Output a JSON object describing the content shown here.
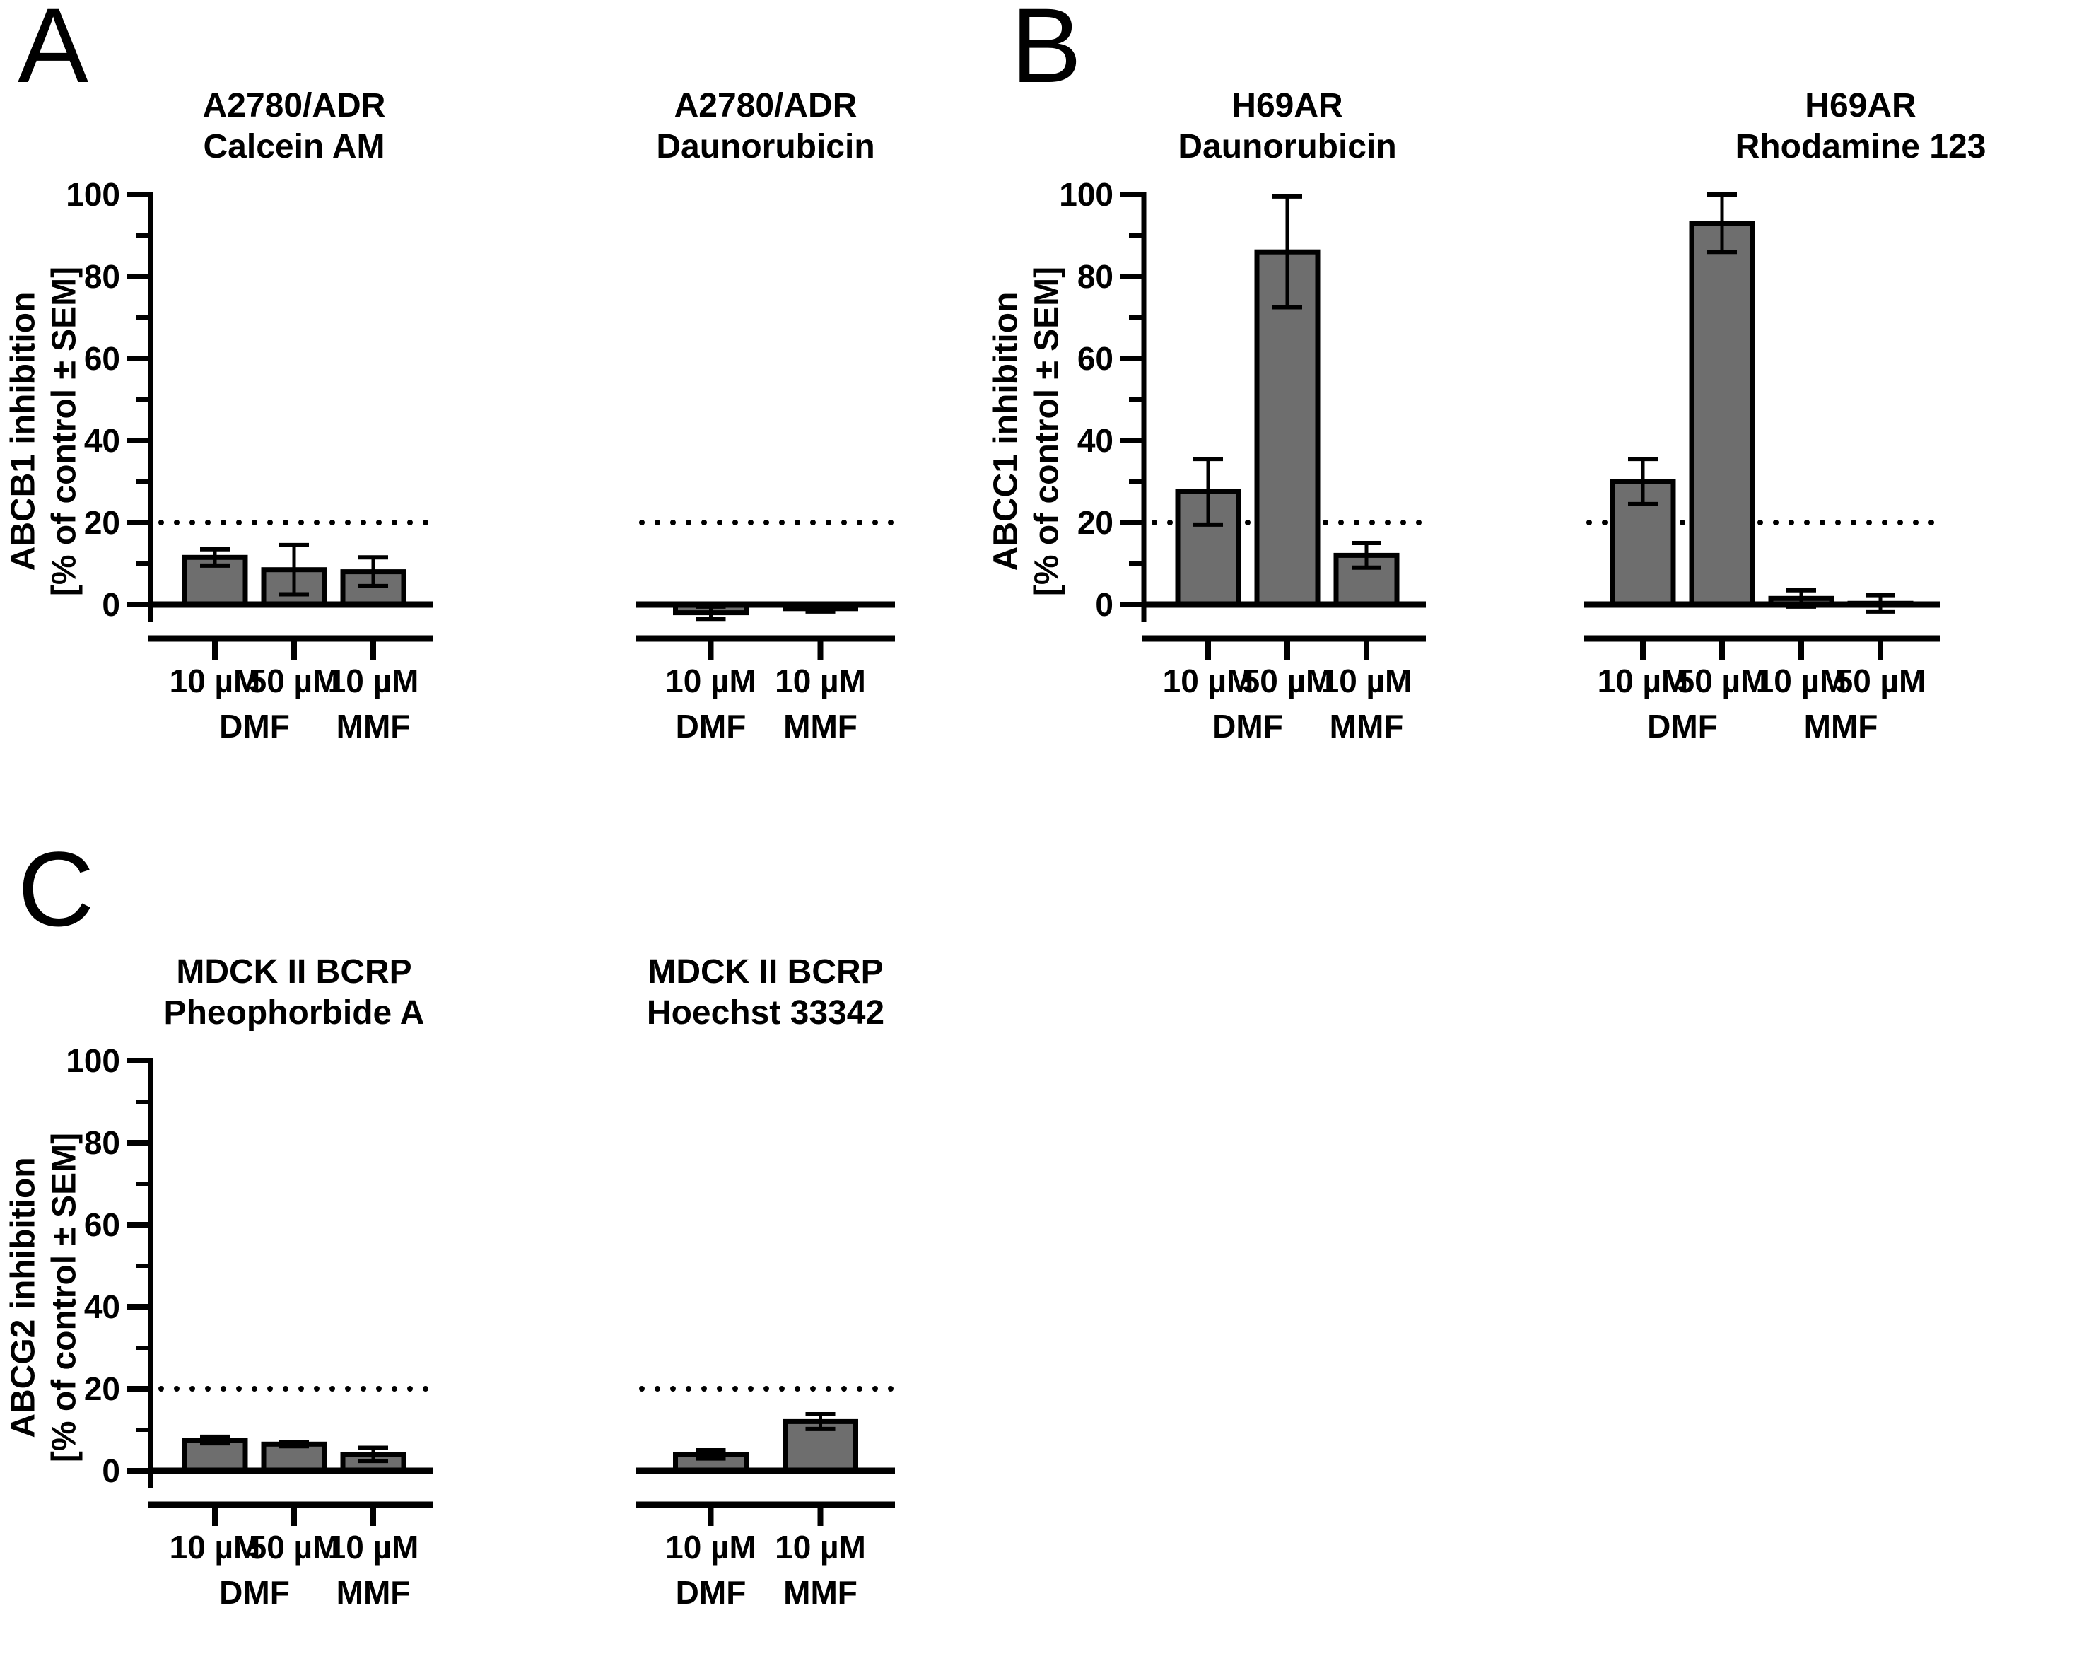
{
  "panel_letters": {
    "a": "A",
    "b": "B",
    "c": "C"
  },
  "style": {
    "background": "#ffffff",
    "bar_fill": "#6e6e6e",
    "line_color": "#000000",
    "text_color": "#000000"
  },
  "chart_data": [
    {
      "type": "bar",
      "panel": "A",
      "title_lines": [
        "A2780/ADR",
        "Calcein AM"
      ],
      "ylabel_lines": [
        "ABCB1 inhibition",
        "[% of control ± SEM]"
      ],
      "x_tick_labels": [
        "10 µM",
        "50 µM",
        "10 µM"
      ],
      "x_group_labels": [
        {
          "label": "DMF",
          "bars": [
            0,
            1
          ]
        },
        {
          "label": "MMF",
          "bars": [
            2
          ]
        }
      ],
      "values": [
        11.5,
        8.5,
        8
      ],
      "errors": [
        2,
        6,
        3.5
      ],
      "threshold": 20,
      "ylim": [
        0,
        100
      ],
      "y_ticks": [
        0,
        20,
        40,
        60,
        80,
        100
      ],
      "y_minor_ticks": [
        10,
        30,
        50,
        70,
        90
      ],
      "show_y_axis": true,
      "title_offset": 0
    },
    {
      "type": "bar",
      "panel": "A",
      "title_lines": [
        "A2780/ADR",
        "Daunorubicin"
      ],
      "ylabel_lines": [
        "ABCB1 inhibition",
        "[% of control ± SEM]"
      ],
      "x_tick_labels": [
        "10 µM",
        "10 µM"
      ],
      "x_group_labels": [
        {
          "label": "DMF",
          "bars": [
            0
          ]
        },
        {
          "label": "MMF",
          "bars": [
            1
          ]
        }
      ],
      "values": [
        -2,
        -1
      ],
      "errors": [
        1.5,
        0.7
      ],
      "threshold": 20,
      "ylim": [
        0,
        100
      ],
      "y_ticks": [
        0,
        20,
        40,
        60,
        80,
        100
      ],
      "y_minor_ticks": [
        10,
        30,
        50,
        70,
        90
      ],
      "show_y_axis": false,
      "title_offset": 0
    },
    {
      "type": "bar",
      "panel": "B",
      "title_lines": [
        "H69AR",
        "Daunorubicin"
      ],
      "ylabel_lines": [
        "ABCC1 inhibition",
        "[% of control ± SEM]"
      ],
      "x_tick_labels": [
        "10 µM",
        "50 µM",
        "10 µM"
      ],
      "x_group_labels": [
        {
          "label": "DMF",
          "bars": [
            0,
            1
          ]
        },
        {
          "label": "MMF",
          "bars": [
            2
          ]
        }
      ],
      "values": [
        27.5,
        86,
        12
      ],
      "errors": [
        8,
        13.5,
        3
      ],
      "threshold": 20,
      "ylim": [
        0,
        100
      ],
      "y_ticks": [
        0,
        20,
        40,
        60,
        80,
        100
      ],
      "y_minor_ticks": [
        10,
        30,
        50,
        70,
        90
      ],
      "show_y_axis": true,
      "title_offset": 0
    },
    {
      "type": "bar",
      "panel": "B",
      "title_lines": [
        "H69AR",
        "Rhodamine 123"
      ],
      "ylabel_lines": [
        "ABCC1 inhibition",
        "[% of control ± SEM]"
      ],
      "x_tick_labels": [
        "10 µM",
        "50 µM",
        "10 µM",
        "50 µM"
      ],
      "x_group_labels": [
        {
          "label": "DMF",
          "bars": [
            0,
            1
          ]
        },
        {
          "label": "MMF",
          "bars": [
            2,
            3
          ]
        }
      ],
      "values": [
        30,
        93,
        1.5,
        0.3
      ],
      "errors": [
        5.5,
        7,
        2,
        2
      ],
      "threshold": 20,
      "ylim": [
        0,
        100
      ],
      "y_ticks": [
        0,
        20,
        40,
        60,
        80,
        100
      ],
      "y_minor_ticks": [
        10,
        30,
        50,
        70,
        90
      ],
      "show_y_axis": false,
      "title_offset": 140
    },
    {
      "type": "bar",
      "panel": "C",
      "title_lines": [
        "MDCK II BCRP",
        "Pheophorbide A"
      ],
      "ylabel_lines": [
        "ABCG2 inhibition",
        "[% of control ± SEM]"
      ],
      "x_tick_labels": [
        "10 µM",
        "50 µM",
        "10 µM"
      ],
      "x_group_labels": [
        {
          "label": "DMF",
          "bars": [
            0,
            1
          ]
        },
        {
          "label": "MMF",
          "bars": [
            2
          ]
        }
      ],
      "values": [
        7.5,
        6.5,
        4
      ],
      "errors": [
        0.8,
        0.5,
        1.6
      ],
      "threshold": 20,
      "ylim": [
        0,
        100
      ],
      "y_ticks": [
        0,
        20,
        40,
        60,
        80,
        100
      ],
      "y_minor_ticks": [
        10,
        30,
        50,
        70,
        90
      ],
      "show_y_axis": true,
      "title_offset": 0
    },
    {
      "type": "bar",
      "panel": "C",
      "title_lines": [
        "MDCK II BCRP",
        "Hoechst 33342"
      ],
      "ylabel_lines": [
        "ABCG2 inhibition",
        "[% of control ± SEM]"
      ],
      "x_tick_labels": [
        "10 µM",
        "10 µM"
      ],
      "x_group_labels": [
        {
          "label": "DMF",
          "bars": [
            0
          ]
        },
        {
          "label": "MMF",
          "bars": [
            1
          ]
        }
      ],
      "values": [
        4,
        12
      ],
      "errors": [
        1,
        1.8
      ],
      "threshold": 20,
      "ylim": [
        0,
        100
      ],
      "y_ticks": [
        0,
        20,
        40,
        60,
        80,
        100
      ],
      "y_minor_ticks": [
        10,
        30,
        50,
        70,
        90
      ],
      "show_y_axis": false,
      "title_offset": 0
    }
  ]
}
